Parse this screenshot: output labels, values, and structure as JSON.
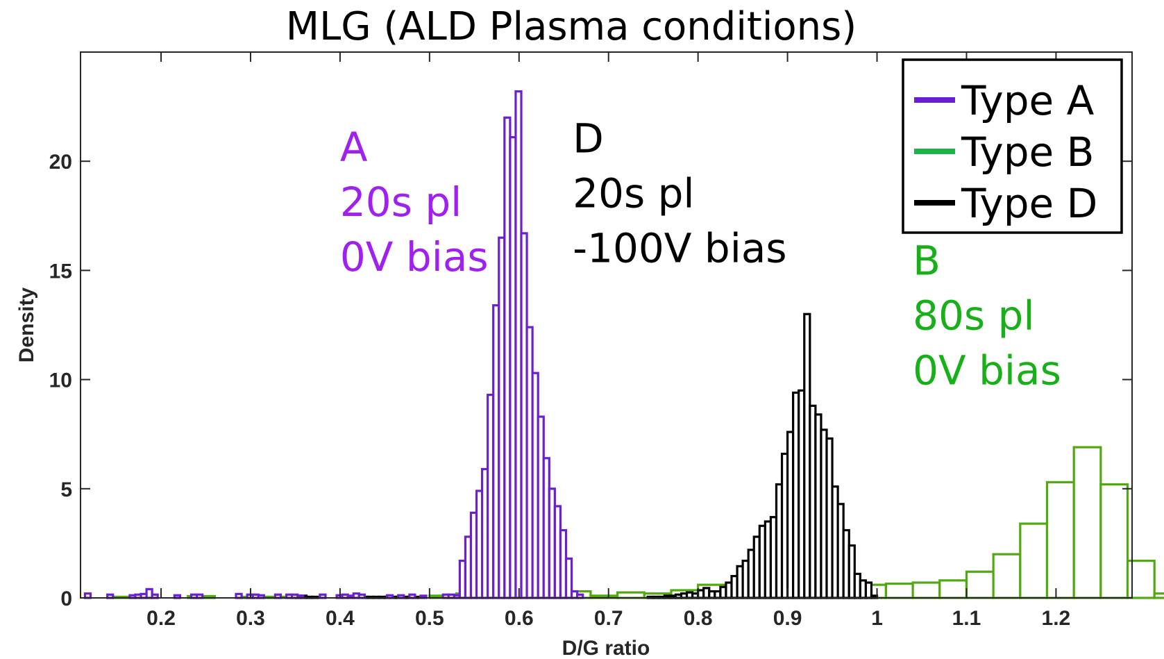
{
  "chart_data": {
    "type": "histogram",
    "title": "MLG (ALD Plasma conditions)",
    "xlabel": "D/G ratio",
    "ylabel": "Density",
    "xlim": [
      0.11,
      1.285
    ],
    "ylim": [
      0,
      25
    ],
    "xticks": [
      0.2,
      0.3,
      0.4,
      0.5,
      0.6,
      0.7,
      0.8,
      0.9,
      1,
      1.1,
      1.2
    ],
    "xtick_labels": [
      "0.2",
      "0.3",
      "0.4",
      "0.5",
      "0.6",
      "0.7",
      "0.8",
      "0.9",
      "1",
      "1.1",
      "1.2"
    ],
    "yticks": [
      0,
      5,
      10,
      15,
      20
    ],
    "ytick_labels": [
      "0",
      "5",
      "10",
      "15",
      "20"
    ],
    "legend": {
      "position": "top-right",
      "entries": [
        {
          "label": "Type A",
          "color": "#6a1fd0"
        },
        {
          "label": "Type B",
          "color": "#20b24a"
        },
        {
          "label": "Type D",
          "color": "#000000"
        }
      ]
    },
    "annotations": [
      {
        "lines": [
          "A",
          "20s pl",
          "0V bias"
        ],
        "color": "#a020f0",
        "x": 0.4,
        "y": 20.0
      },
      {
        "lines": [
          "D",
          "20s pl",
          "-100V bias"
        ],
        "color": "#000000",
        "x": 0.66,
        "y": 20.4
      },
      {
        "lines": [
          "B",
          "80s pl",
          "0V bias"
        ],
        "color": "#18b018",
        "x": 1.04,
        "y": 14.8
      }
    ],
    "series": [
      {
        "name": "Type A",
        "color": "#6a1fd0",
        "start": 0.115,
        "width": 0.00625,
        "values": [
          0.2,
          0,
          0,
          0,
          0.15,
          0,
          0,
          0,
          0.12,
          0.15,
          0.18,
          0.4,
          0.15,
          0,
          0,
          0,
          0.12,
          0,
          0,
          0.15,
          0.15,
          0,
          0,
          0,
          0,
          0,
          0,
          0.18,
          0,
          0.15,
          0.15,
          0.12,
          0,
          0,
          0.15,
          0,
          0.15,
          0.15,
          0.1,
          0,
          0,
          0,
          0.15,
          0,
          0,
          0.12,
          0.15,
          0.1,
          0.2,
          0.15,
          0,
          0,
          0,
          0,
          0.12,
          0,
          0.12,
          0,
          0.15,
          0,
          0.1,
          0,
          0,
          0,
          0.15,
          0.15,
          0.12,
          1.7,
          2.8,
          3.9,
          4.9,
          5.9,
          9.3,
          13.4,
          16.5,
          22.0,
          21.1,
          23.2,
          16.7,
          12.4,
          10.3,
          8.3,
          6.4,
          5.0,
          4.2,
          3.1,
          1.8,
          0.3,
          0.15
        ]
      },
      {
        "name": "Type B",
        "color": "#52a810",
        "start": 0.11,
        "width": 0.03,
        "values": [
          0,
          0.05,
          0,
          0,
          0.08,
          0,
          0.05,
          0.05,
          0,
          0,
          0,
          0,
          0,
          0.1,
          0.2,
          0.28,
          0.2,
          0.4,
          0.3,
          0.1,
          0.25,
          0.2,
          0.35,
          0.6,
          0.5,
          0.45,
          0.5,
          0.4,
          0.5,
          0.6,
          0.65,
          0.7,
          0.8,
          1.2,
          2.0,
          3.4,
          5.3,
          6.9,
          5.2,
          1.7,
          0.2,
          0.05
        ]
      },
      {
        "name": "Type D",
        "color": "#000000",
        "start": 0.35,
        "width": 0.00625,
        "values": [
          0.1,
          0.1,
          0.05,
          0.05,
          0,
          0,
          0,
          0,
          0,
          0,
          0,
          0,
          0.05,
          0.05,
          0.05,
          0.05,
          0.05,
          0.05,
          0.05,
          0.05,
          0.05,
          0.05,
          0,
          0,
          0,
          0,
          0,
          0,
          0,
          0,
          0,
          0,
          0,
          0,
          0,
          0,
          0,
          0,
          0,
          0,
          0,
          0,
          0,
          0,
          0,
          0,
          0,
          0,
          0,
          0,
          0,
          0,
          0,
          0,
          0,
          0,
          0,
          0,
          0,
          0,
          0,
          0,
          0,
          0.05,
          0.05,
          0.05,
          0.1,
          0.1,
          0.15,
          0.2,
          0.25,
          0.2,
          0.35,
          0.45,
          0.3,
          0.3,
          0.5,
          0.7,
          1.0,
          1.45,
          1.7,
          2.2,
          2.8,
          3.3,
          3.5,
          3.7,
          5.2,
          6.6,
          7.6,
          9.4,
          9.5,
          13.0,
          8.8,
          8.4,
          7.7,
          7.3,
          5.1,
          4.3,
          3.1,
          2.4,
          1.1,
          0.8,
          0.7,
          0.1
        ]
      }
    ]
  }
}
